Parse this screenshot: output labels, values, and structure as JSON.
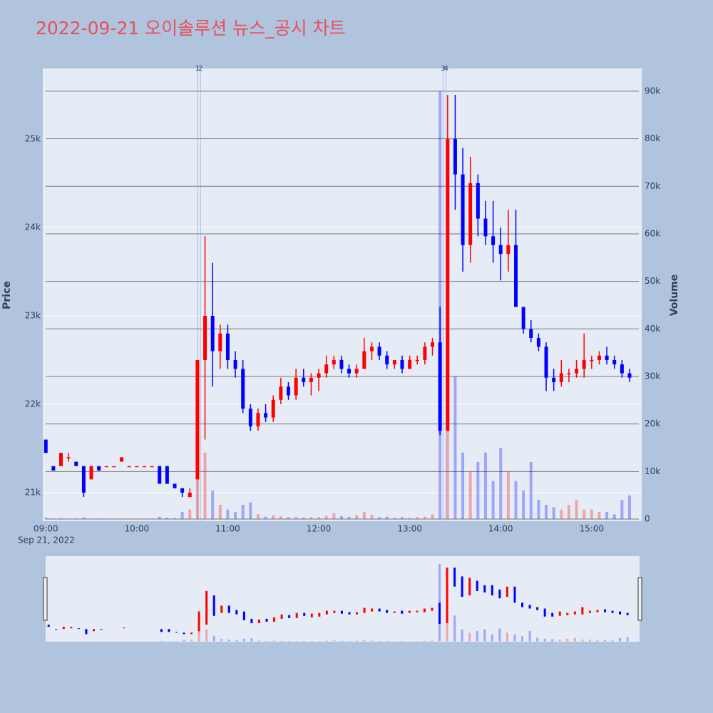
{
  "chart_data": {
    "type": "candlestick",
    "title": "2022-09-21 오이솔루션 뉴스_공시 차트",
    "y_title": "Price",
    "y2_title": "Volume",
    "x_date_label": "Sep 21, 2022",
    "increasing_color": "#ff0000",
    "decreasing_color": "#0000ff",
    "xlim": [
      "08:58",
      "15:33"
    ],
    "xticks": [
      "09:00",
      "10:00",
      "11:00",
      "12:00",
      "13:00",
      "14:00",
      "15:00"
    ],
    "ylim": [
      20677,
      25798
    ],
    "yticks": [
      {
        "value": 21000,
        "label": "21k"
      },
      {
        "value": 22000,
        "label": "22k"
      },
      {
        "value": 23000,
        "label": "23k"
      },
      {
        "value": 24000,
        "label": "24k"
      },
      {
        "value": 25000,
        "label": "25k"
      }
    ],
    "y2lim": [
      -450,
      94790
    ],
    "y2ticks": [
      0,
      {
        "value": 10000,
        "label": "10k"
      },
      {
        "value": 20000,
        "label": "20k"
      },
      {
        "value": 30000,
        "label": "30k"
      },
      {
        "value": 40000,
        "label": "40k"
      },
      {
        "value": 50000,
        "label": "50k"
      },
      {
        "value": 60000,
        "label": "60k"
      },
      {
        "value": 70000,
        "label": "70k"
      },
      {
        "value": 80000,
        "label": "80k"
      },
      {
        "value": 90000,
        "label": "90k"
      }
    ],
    "annotations": [
      {
        "x": "10:40",
        "text": "1"
      },
      {
        "x": "10:42",
        "text": "2"
      },
      {
        "x": "13:22",
        "text": "3"
      },
      {
        "x": "13:24",
        "text": "4"
      }
    ],
    "x": [
      "09:00",
      "09:05",
      "09:10",
      "09:15",
      "09:20",
      "09:25",
      "09:30",
      "09:35",
      "09:40",
      "09:45",
      "09:50",
      "09:55",
      "10:00",
      "10:05",
      "10:10",
      "10:15",
      "10:20",
      "10:25",
      "10:30",
      "10:35",
      "10:40",
      "10:45",
      "10:50",
      "10:55",
      "11:00",
      "11:05",
      "11:10",
      "11:15",
      "11:20",
      "11:25",
      "11:30",
      "11:35",
      "11:40",
      "11:45",
      "11:50",
      "11:55",
      "12:00",
      "12:05",
      "12:10",
      "12:15",
      "12:20",
      "12:25",
      "12:30",
      "12:35",
      "12:40",
      "12:45",
      "12:50",
      "12:55",
      "13:00",
      "13:05",
      "13:10",
      "13:15",
      "13:20",
      "13:25",
      "13:30",
      "13:35",
      "13:40",
      "13:45",
      "13:50",
      "13:55",
      "14:00",
      "14:05",
      "14:10",
      "14:15",
      "14:20",
      "14:25",
      "14:30",
      "14:35",
      "14:40",
      "14:45",
      "14:50",
      "14:55",
      "15:00",
      "15:05",
      "15:10",
      "15:15",
      "15:20",
      "15:25"
    ],
    "open": [
      21600,
      21300,
      21300,
      21400,
      21350,
      21300,
      21150,
      21300,
      21300,
      21300,
      21350,
      21300,
      21300,
      21300,
      21300,
      21300,
      21300,
      21100,
      21050,
      20950,
      21150,
      22500,
      23000,
      22600,
      22800,
      22500,
      22400,
      21950,
      21750,
      21900,
      21850,
      22050,
      22200,
      22100,
      22300,
      22250,
      22300,
      22350,
      22450,
      22500,
      22400,
      22350,
      22400,
      22600,
      22650,
      22550,
      22450,
      22500,
      22400,
      22500,
      22500,
      22650,
      22700,
      21700,
      25000,
      24600,
      23800,
      24500,
      24100,
      23900,
      23800,
      23700,
      23800,
      23100,
      22850,
      22750,
      22650,
      22300,
      22250,
      22350,
      22350,
      22400,
      22500,
      22500,
      22550,
      22500,
      22450,
      22350
    ],
    "high": [
      21600,
      21300,
      21450,
      21450,
      21350,
      21300,
      21300,
      21300,
      21300,
      21300,
      21400,
      21300,
      21300,
      21300,
      21300,
      21300,
      21300,
      21100,
      21050,
      21050,
      22500,
      23900,
      23600,
      22900,
      22900,
      22600,
      22500,
      22000,
      21950,
      22000,
      22100,
      22300,
      22250,
      22400,
      22400,
      22350,
      22400,
      22550,
      22550,
      22550,
      22450,
      22450,
      22750,
      22700,
      22700,
      22600,
      22500,
      22550,
      22550,
      22550,
      22700,
      22750,
      23100,
      25500,
      25500,
      24900,
      24800,
      24600,
      24300,
      24300,
      24000,
      24200,
      24200,
      23100,
      22950,
      22800,
      22700,
      22400,
      22500,
      22400,
      22500,
      22800,
      22550,
      22600,
      22650,
      22550,
      22500,
      22400
    ],
    "low": [
      21450,
      21250,
      21300,
      21350,
      21300,
      20950,
      21150,
      21250,
      21300,
      21300,
      21350,
      21300,
      21300,
      21300,
      21300,
      21100,
      21100,
      21050,
      20950,
      20950,
      21150,
      21600,
      22200,
      22400,
      22400,
      22300,
      21900,
      21700,
      21700,
      21800,
      21800,
      22000,
      22050,
      22050,
      22200,
      22100,
      22150,
      22300,
      22400,
      22350,
      22300,
      22300,
      22400,
      22500,
      22500,
      22400,
      22400,
      22350,
      22400,
      22450,
      22450,
      22550,
      21650,
      21700,
      24200,
      23500,
      23600,
      23900,
      23800,
      23600,
      23400,
      23500,
      23100,
      22800,
      22700,
      22600,
      22150,
      22150,
      22200,
      22250,
      22300,
      22300,
      22400,
      22450,
      22450,
      22400,
      22300,
      22250
    ],
    "close": [
      21450,
      21250,
      21450,
      21400,
      21300,
      21000,
      21300,
      21250,
      21300,
      21300,
      21400,
      21300,
      21300,
      21300,
      21300,
      21100,
      21100,
      21050,
      21000,
      21000,
      22500,
      23000,
      22600,
      22800,
      22500,
      22400,
      21950,
      21750,
      21900,
      21850,
      22050,
      22200,
      22100,
      22300,
      22250,
      22300,
      22350,
      22450,
      22500,
      22400,
      22350,
      22400,
      22600,
      22650,
      22550,
      22450,
      22500,
      22400,
      22500,
      22500,
      22650,
      22700,
      21700,
      25000,
      24600,
      23800,
      24500,
      24100,
      23900,
      23800,
      23700,
      23800,
      23100,
      22850,
      22750,
      22650,
      22300,
      22250,
      22350,
      22350,
      22400,
      22500,
      22500,
      22550,
      22500,
      22450,
      22350,
      22300
    ],
    "volume": [
      300,
      100,
      200,
      100,
      100,
      300,
      100,
      100,
      100,
      100,
      100,
      100,
      100,
      100,
      100,
      500,
      300,
      200,
      1500,
      2000,
      16000,
      14000,
      6000,
      3000,
      2000,
      1500,
      3000,
      3500,
      1000,
      500,
      800,
      600,
      400,
      500,
      300,
      400,
      400,
      700,
      1200,
      600,
      500,
      800,
      1500,
      900,
      400,
      500,
      300,
      400,
      300,
      400,
      500,
      1000,
      90000,
      60000,
      30000,
      14000,
      10000,
      12000,
      14000,
      8000,
      15000,
      10000,
      8000,
      6000,
      12000,
      4000,
      3000,
      2500,
      2000,
      3000,
      4000,
      2000,
      2000,
      1500,
      1500,
      1000,
      4000,
      5000
    ]
  }
}
